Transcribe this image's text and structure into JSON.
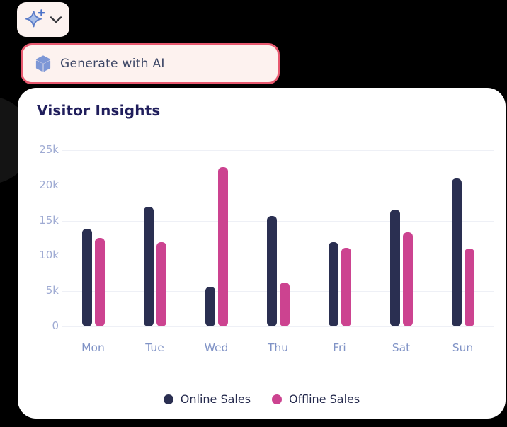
{
  "toolbar": {
    "ai_button": {
      "sparkle_icon": "sparkle-plus-icon",
      "chevron_icon": "chevron-down-icon",
      "background": "#FCF2EF",
      "icon_color": "#5C7CC7"
    }
  },
  "menu": {
    "generate_label": "Generate with AI",
    "icon": "cube-icon",
    "icon_color": "#7E97D6",
    "border_color": "#E8596F",
    "background": "#FDF2EF"
  },
  "card": {
    "title": "Visitor Insights"
  },
  "chart_data": {
    "type": "bar",
    "title": "Visitor Insights",
    "categories": [
      "Mon",
      "Tue",
      "Wed",
      "Thu",
      "Fri",
      "Sat",
      "Sun"
    ],
    "series": [
      {
        "name": "Online Sales",
        "color": "#2A2F51",
        "values": [
          13900,
          17000,
          5600,
          15700,
          11900,
          16600,
          21000
        ]
      },
      {
        "name": "Offline Sales",
        "color": "#CC4390",
        "values": [
          12600,
          11900,
          22600,
          6200,
          11100,
          13400,
          11000
        ]
      }
    ],
    "ylim": [
      0,
      25000
    ],
    "yticks": [
      0,
      5000,
      10000,
      15000,
      20000,
      25000
    ],
    "ytick_labels": [
      "0",
      "5k",
      "10k",
      "15k",
      "20k",
      "25k"
    ],
    "grid": true,
    "legend_position": "bottom",
    "colors": {
      "grid_line": "#EEF0F6",
      "y_tick_text": "#9FABD3",
      "x_tick_text": "#8093C6",
      "title_text": "#201E5C",
      "legend_text": "#252A4D"
    }
  }
}
